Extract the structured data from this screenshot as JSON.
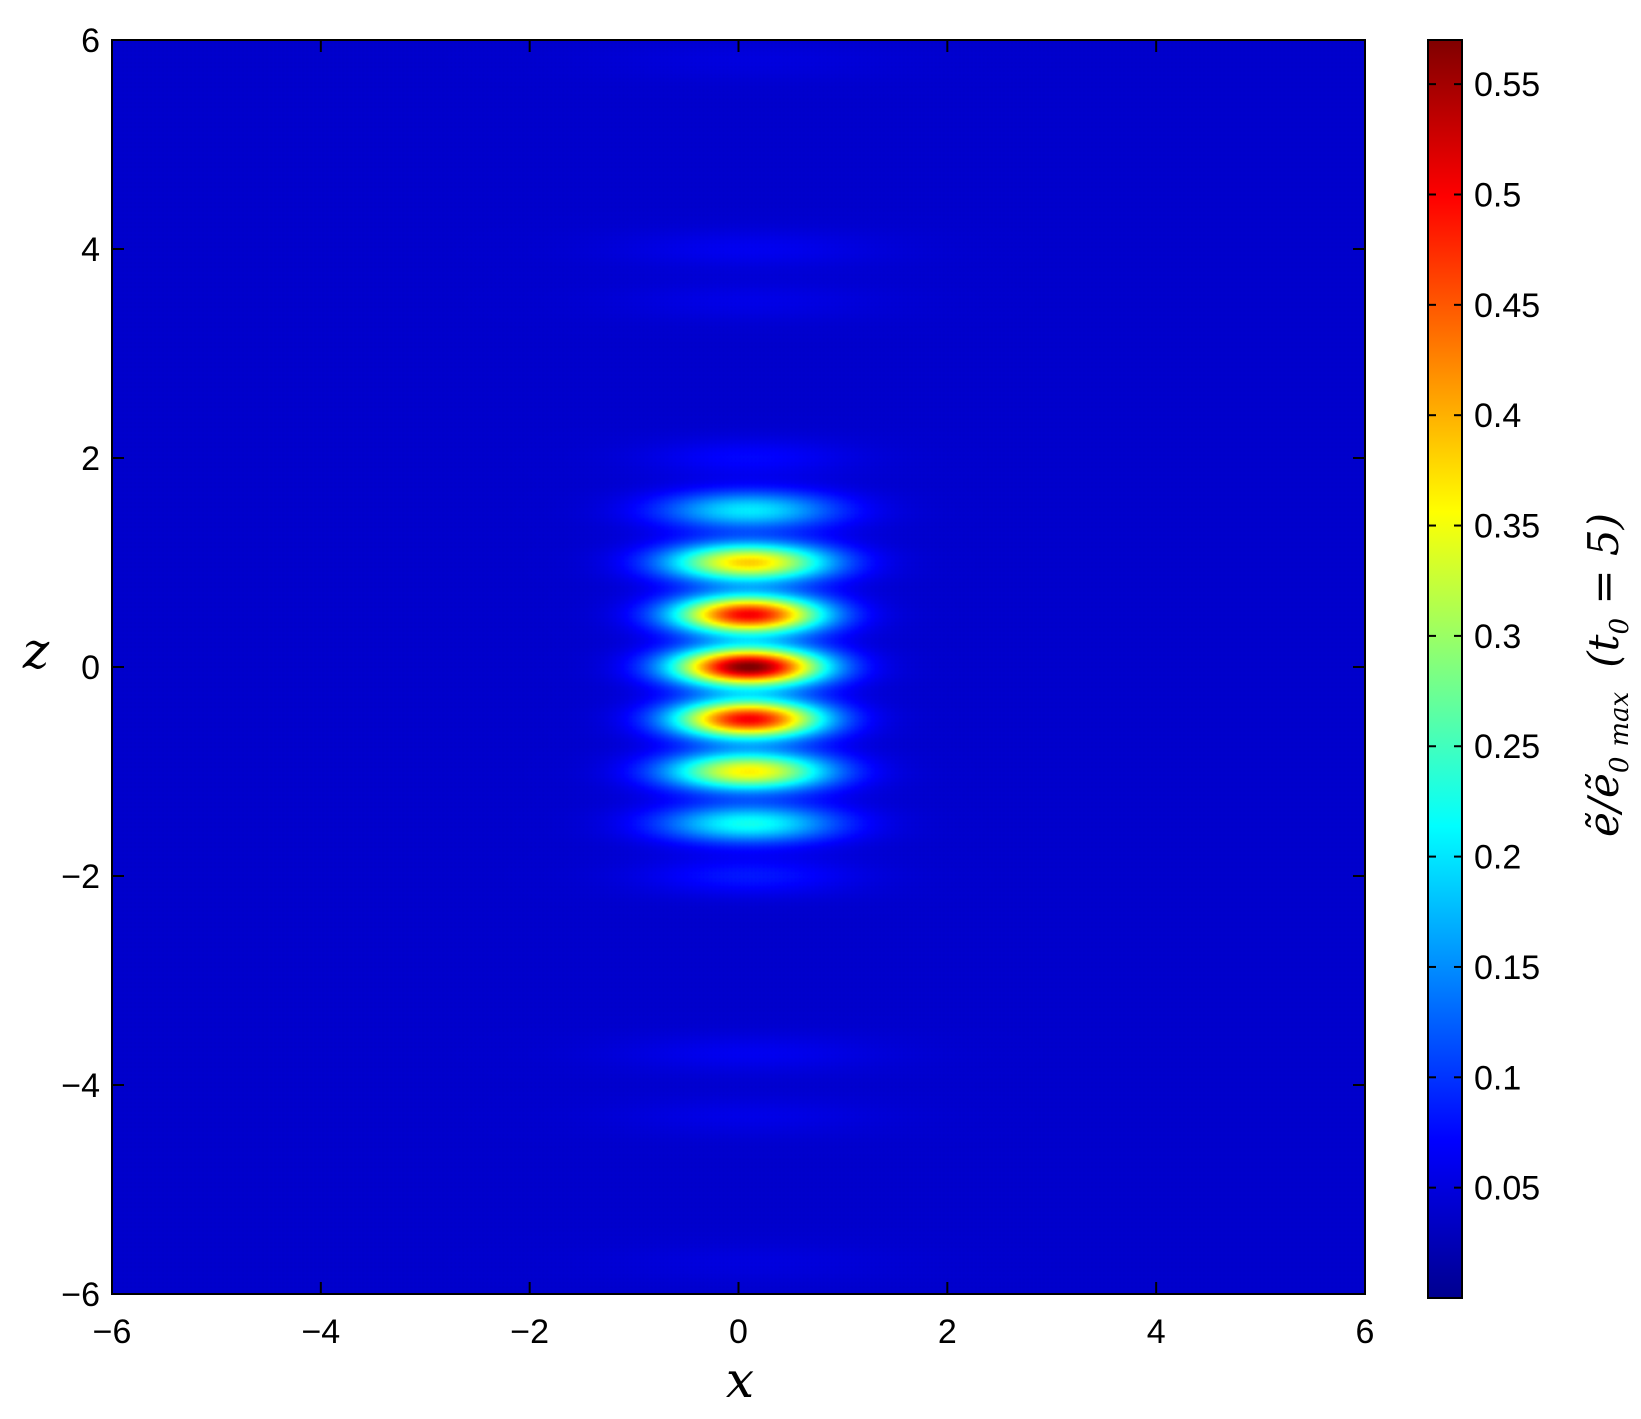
{
  "chart_data": {
    "type": "heatmap",
    "title": "",
    "xlabel": "x",
    "ylabel": "z",
    "xlim": [
      -6,
      6
    ],
    "ylim": [
      -6,
      6
    ],
    "xticks": [
      -6,
      -4,
      -2,
      0,
      2,
      4,
      6
    ],
    "yticks": [
      -6,
      -4,
      -2,
      0,
      2,
      4,
      6
    ],
    "x_tick_labels": [
      "−6",
      "−4",
      "−2",
      "0",
      "2",
      "4",
      "6"
    ],
    "y_tick_labels": [
      "−6",
      "−4",
      "−2",
      "0",
      "2",
      "4",
      "6"
    ],
    "colormap": "jet",
    "colorbar": {
      "label_parts": {
        "main": "ẽ/ẽ",
        "sub0": "0",
        "submax": "max",
        "cond": "(t",
        "cond_sub": "0",
        "cond_end": " = 5)"
      },
      "range": [
        0,
        0.57
      ],
      "ticks": [
        0.05,
        0.1,
        0.15,
        0.2,
        0.25,
        0.3,
        0.35,
        0.4,
        0.45,
        0.5,
        0.55
      ],
      "tick_labels": [
        "0.05",
        "0.1",
        "0.15",
        "0.2",
        "0.25",
        "0.3",
        "0.35",
        "0.4",
        "0.45",
        "0.5",
        "0.55"
      ]
    },
    "field": {
      "background_level": 0.04,
      "center_x": 0.1,
      "fringes": [
        {
          "z": 0.0,
          "peak": 0.57,
          "sigma_x": 0.5
        },
        {
          "z": 0.5,
          "peak": 0.5,
          "sigma_x": 0.5
        },
        {
          "z": -0.5,
          "peak": 0.5,
          "sigma_x": 0.5
        },
        {
          "z": 1.0,
          "peak": 0.38,
          "sigma_x": 0.55
        },
        {
          "z": -1.0,
          "peak": 0.36,
          "sigma_x": 0.55
        },
        {
          "z": 1.5,
          "peak": 0.2,
          "sigma_x": 0.6
        },
        {
          "z": -1.5,
          "peak": 0.22,
          "sigma_x": 0.6
        },
        {
          "z": 2.0,
          "peak": 0.07,
          "sigma_x": 0.7
        },
        {
          "z": -2.0,
          "peak": 0.08,
          "sigma_x": 0.7
        },
        {
          "z": 4.0,
          "peak": 0.06,
          "sigma_x": 0.9
        },
        {
          "z": 3.5,
          "peak": 0.055,
          "sigma_x": 0.9
        },
        {
          "z": -3.7,
          "peak": 0.06,
          "sigma_x": 0.9
        },
        {
          "z": -4.3,
          "peak": 0.055,
          "sigma_x": 0.9
        },
        {
          "z": 5.8,
          "peak": 0.05,
          "sigma_x": 1.0
        },
        {
          "z": -5.7,
          "peak": 0.05,
          "sigma_x": 1.0
        }
      ]
    }
  }
}
